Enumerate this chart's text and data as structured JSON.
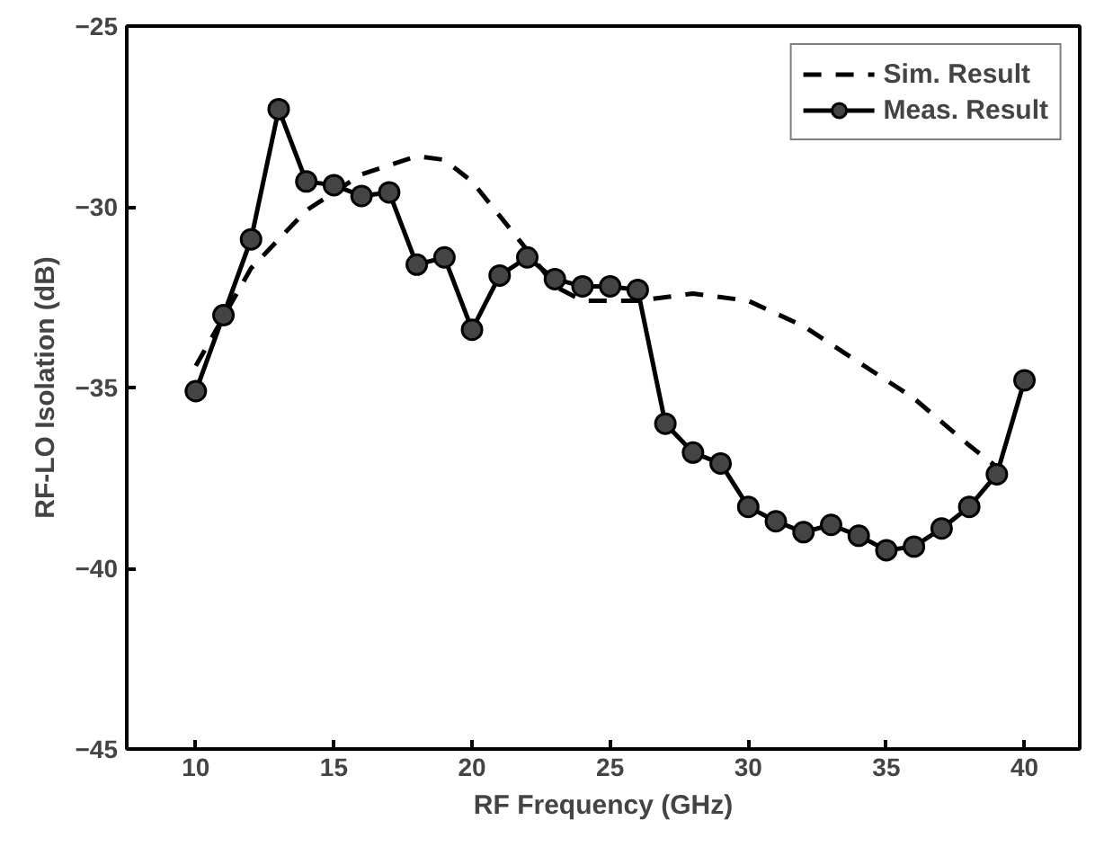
{
  "chart_data": {
    "type": "line",
    "xlabel": "RF Frequency (GHz)",
    "ylabel": "RF-LO Isolation (dB)",
    "xlim": [
      7.5,
      42
    ],
    "ylim": [
      -45,
      -25
    ],
    "xticks": [
      10,
      15,
      20,
      25,
      30,
      35,
      40
    ],
    "yticks": [
      -45,
      -40,
      -35,
      -30,
      -25
    ],
    "legend": "top right",
    "grid": false,
    "series": [
      {
        "name": "Sim. Result",
        "color": "#000000",
        "line_style": "dashed",
        "marker": "none",
        "x": [
          10,
          12,
          14,
          16,
          18,
          19,
          20,
          22,
          23,
          24,
          25,
          26,
          28,
          30,
          32,
          34,
          36,
          38,
          39
        ],
        "values": [
          -34.4,
          -31.7,
          -30.1,
          -29.1,
          -28.6,
          -28.7,
          -29.3,
          -31.2,
          -32.2,
          -32.6,
          -32.6,
          -32.6,
          -32.4,
          -32.6,
          -33.3,
          -34.3,
          -35.3,
          -36.6,
          -37.2
        ]
      },
      {
        "name": "Meas. Result",
        "color": "#000000",
        "line_style": "solid",
        "marker": "circle",
        "x": [
          10,
          11,
          12,
          13,
          14,
          15,
          16,
          17,
          18,
          19,
          20,
          21,
          22,
          23,
          24,
          25,
          26,
          27,
          28,
          29,
          30,
          31,
          32,
          33,
          34,
          35,
          36,
          37,
          38,
          39,
          40
        ],
        "values": [
          -35.1,
          -33.0,
          -30.9,
          -27.3,
          -29.3,
          -29.4,
          -29.7,
          -29.6,
          -31.6,
          -31.4,
          -33.4,
          -31.9,
          -31.4,
          -32.0,
          -32.2,
          -32.2,
          -32.3,
          -36.0,
          -36.8,
          -37.1,
          -38.3,
          -38.7,
          -39.0,
          -38.8,
          -39.1,
          -39.5,
          -39.4,
          -38.9,
          -38.3,
          -37.4,
          -34.8
        ]
      }
    ]
  }
}
